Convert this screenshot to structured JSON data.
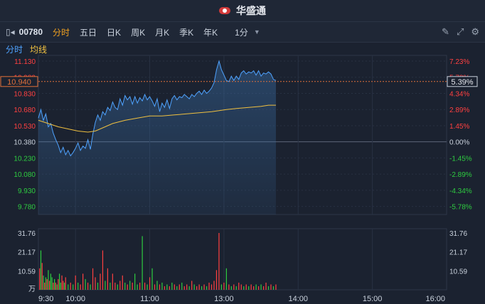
{
  "app": {
    "brand": "华盛通"
  },
  "toolbar": {
    "collapse_icon": "collapse-left-icon",
    "code": "00780",
    "tabs": [
      "分时",
      "五日",
      "日K",
      "周K",
      "月K",
      "季K",
      "年K"
    ],
    "active_tab": "分时",
    "interval": "1分",
    "icons": [
      "edit-icon",
      "expand-icon",
      "settings-icon"
    ]
  },
  "legend": {
    "line1": "分时",
    "line2": "均线"
  },
  "colors": {
    "price_line": "#4fa3ff",
    "avg_line": "#f0c040",
    "up": "#ff4040",
    "down": "#2ecc40",
    "neutral": "#c9d1dc"
  },
  "chart_data": {
    "type": "line",
    "price_axis": {
      "ticks": [
        "11.130",
        "10.980",
        "10.830",
        "10.680",
        "10.530",
        "10.380",
        "10.230",
        "10.080",
        "9.930",
        "9.780"
      ],
      "prev_close": "10.380",
      "min": 9.705,
      "max": 11.13
    },
    "pct_axis": {
      "ticks": [
        "7.23%",
        "5.78%",
        "4.34%",
        "2.89%",
        "1.45%",
        "0.00%",
        "-1.45%",
        "-2.89%",
        "-4.34%",
        "-5.78%"
      ]
    },
    "current": {
      "price_label": "10.940",
      "pct_label": "5.39%",
      "price": 10.94
    },
    "volume_axis": {
      "ticks": [
        "31.76",
        "21.17",
        "10.59"
      ],
      "unit": "万",
      "max": 31.76
    },
    "time_ticks": [
      "9:30",
      "10:00",
      "11:00",
      "13:00",
      "14:00",
      "15:00",
      "16:00"
    ],
    "price_series": [
      [
        0,
        10.6
      ],
      [
        2,
        10.68
      ],
      [
        4,
        10.58
      ],
      [
        6,
        10.64
      ],
      [
        8,
        10.52
      ],
      [
        10,
        10.55
      ],
      [
        12,
        10.46
      ],
      [
        14,
        10.4
      ],
      [
        16,
        10.35
      ],
      [
        18,
        10.28
      ],
      [
        20,
        10.33
      ],
      [
        22,
        10.26
      ],
      [
        24,
        10.3
      ],
      [
        26,
        10.25
      ],
      [
        28,
        10.28
      ],
      [
        30,
        10.32
      ],
      [
        32,
        10.37
      ],
      [
        34,
        10.3
      ],
      [
        36,
        10.34
      ],
      [
        38,
        10.32
      ],
      [
        40,
        10.4
      ],
      [
        42,
        10.31
      ],
      [
        44,
        10.45
      ],
      [
        46,
        10.56
      ],
      [
        48,
        10.63
      ],
      [
        50,
        10.58
      ],
      [
        52,
        10.66
      ],
      [
        54,
        10.63
      ],
      [
        56,
        10.7
      ],
      [
        58,
        10.67
      ],
      [
        60,
        10.75
      ],
      [
        62,
        10.7
      ],
      [
        64,
        10.68
      ],
      [
        66,
        10.78
      ],
      [
        68,
        10.72
      ],
      [
        70,
        10.81
      ],
      [
        72,
        10.77
      ],
      [
        74,
        10.8
      ],
      [
        76,
        10.73
      ],
      [
        78,
        10.8
      ],
      [
        80,
        10.74
      ],
      [
        82,
        10.79
      ],
      [
        84,
        10.76
      ],
      [
        86,
        10.82
      ],
      [
        88,
        10.77
      ],
      [
        90,
        10.8
      ],
      [
        92,
        10.76
      ],
      [
        94,
        10.71
      ],
      [
        96,
        10.78
      ],
      [
        98,
        10.66
      ],
      [
        100,
        10.74
      ],
      [
        102,
        10.7
      ],
      [
        104,
        10.77
      ],
      [
        106,
        10.69
      ],
      [
        108,
        10.78
      ],
      [
        110,
        10.81
      ],
      [
        112,
        10.77
      ],
      [
        114,
        10.8
      ],
      [
        116,
        10.79
      ],
      [
        118,
        10.82
      ],
      [
        120,
        10.8
      ],
      [
        122,
        10.78
      ],
      [
        124,
        10.82
      ],
      [
        126,
        10.8
      ],
      [
        128,
        10.83
      ],
      [
        130,
        10.85
      ],
      [
        132,
        10.82
      ],
      [
        134,
        10.86
      ],
      [
        136,
        10.83
      ],
      [
        138,
        10.85
      ],
      [
        140,
        10.88
      ],
      [
        142,
        10.93
      ],
      [
        144,
        11.05
      ],
      [
        146,
        11.13
      ],
      [
        148,
        11.05
      ],
      [
        150,
        11.0
      ],
      [
        152,
        10.95
      ],
      [
        154,
        10.94
      ],
      [
        156,
        10.99
      ],
      [
        158,
        10.95
      ],
      [
        160,
        10.99
      ],
      [
        162,
        10.96
      ],
      [
        164,
        11.02
      ],
      [
        166,
        11.04
      ],
      [
        168,
        11.01
      ],
      [
        170,
        11.03
      ],
      [
        172,
        11.02
      ],
      [
        174,
        11.04
      ],
      [
        176,
        11.0
      ],
      [
        178,
        11.04
      ],
      [
        180,
        10.99
      ],
      [
        182,
        11.02
      ],
      [
        184,
        11.01
      ],
      [
        186,
        11.03
      ],
      [
        188,
        11.01
      ],
      [
        190,
        10.96
      ],
      [
        192,
        10.95
      ]
    ],
    "avg_series": [
      [
        0,
        10.58
      ],
      [
        8,
        10.55
      ],
      [
        16,
        10.52
      ],
      [
        24,
        10.5
      ],
      [
        32,
        10.48
      ],
      [
        40,
        10.47
      ],
      [
        46,
        10.48
      ],
      [
        52,
        10.51
      ],
      [
        60,
        10.55
      ],
      [
        70,
        10.58
      ],
      [
        80,
        10.6
      ],
      [
        90,
        10.62
      ],
      [
        100,
        10.62
      ],
      [
        110,
        10.63
      ],
      [
        120,
        10.64
      ],
      [
        130,
        10.65
      ],
      [
        140,
        10.66
      ],
      [
        146,
        10.67
      ],
      [
        152,
        10.68
      ],
      [
        160,
        10.69
      ],
      [
        170,
        10.7
      ],
      [
        180,
        10.71
      ],
      [
        186,
        10.72
      ],
      [
        192,
        10.72
      ]
    ],
    "volume_series": [
      [
        1,
        12,
        "u"
      ],
      [
        2,
        22,
        "d"
      ],
      [
        3,
        15,
        "u"
      ],
      [
        4,
        8,
        "d"
      ],
      [
        5,
        4,
        "u"
      ],
      [
        6,
        7,
        "d"
      ],
      [
        7,
        6,
        "u"
      ],
      [
        8,
        11,
        "d"
      ],
      [
        9,
        5,
        "u"
      ],
      [
        10,
        9,
        "d"
      ],
      [
        11,
        7,
        "d"
      ],
      [
        12,
        4,
        "u"
      ],
      [
        13,
        6,
        "d"
      ],
      [
        14,
        4,
        "u"
      ],
      [
        15,
        3,
        "d"
      ],
      [
        16,
        6,
        "u"
      ],
      [
        17,
        9,
        "d"
      ],
      [
        18,
        4,
        "d"
      ],
      [
        19,
        8,
        "u"
      ],
      [
        20,
        5,
        "u"
      ],
      [
        21,
        4,
        "d"
      ],
      [
        22,
        7,
        "u"
      ],
      [
        24,
        3,
        "d"
      ],
      [
        26,
        4,
        "u"
      ],
      [
        28,
        3,
        "d"
      ],
      [
        30,
        8,
        "u"
      ],
      [
        32,
        4,
        "d"
      ],
      [
        34,
        3,
        "u"
      ],
      [
        36,
        9,
        "u"
      ],
      [
        38,
        6,
        "d"
      ],
      [
        40,
        4,
        "u"
      ],
      [
        42,
        3,
        "d"
      ],
      [
        44,
        12,
        "u"
      ],
      [
        46,
        7,
        "u"
      ],
      [
        48,
        4,
        "d"
      ],
      [
        50,
        9,
        "u"
      ],
      [
        52,
        22,
        "u"
      ],
      [
        54,
        5,
        "d"
      ],
      [
        56,
        12,
        "u"
      ],
      [
        58,
        4,
        "d"
      ],
      [
        60,
        9,
        "u"
      ],
      [
        62,
        4,
        "u"
      ],
      [
        64,
        3,
        "d"
      ],
      [
        66,
        5,
        "u"
      ],
      [
        68,
        8,
        "u"
      ],
      [
        70,
        4,
        "d"
      ],
      [
        72,
        3,
        "u"
      ],
      [
        74,
        5,
        "d"
      ],
      [
        76,
        4,
        "u"
      ],
      [
        78,
        9,
        "d"
      ],
      [
        80,
        3,
        "d"
      ],
      [
        82,
        4,
        "u"
      ],
      [
        84,
        30,
        "d"
      ],
      [
        86,
        4,
        "u"
      ],
      [
        88,
        3,
        "d"
      ],
      [
        90,
        7,
        "u"
      ],
      [
        92,
        12,
        "d"
      ],
      [
        94,
        3,
        "u"
      ],
      [
        96,
        5,
        "d"
      ],
      [
        98,
        3,
        "u"
      ],
      [
        100,
        4,
        "d"
      ],
      [
        102,
        2,
        "u"
      ],
      [
        104,
        3,
        "d"
      ],
      [
        106,
        2,
        "u"
      ],
      [
        108,
        4,
        "d"
      ],
      [
        110,
        3,
        "u"
      ],
      [
        112,
        2,
        "d"
      ],
      [
        114,
        3,
        "u"
      ],
      [
        116,
        4,
        "d"
      ],
      [
        118,
        2,
        "u"
      ],
      [
        120,
        3,
        "u"
      ],
      [
        122,
        2,
        "d"
      ],
      [
        124,
        5,
        "u"
      ],
      [
        126,
        3,
        "d"
      ],
      [
        128,
        2,
        "u"
      ],
      [
        130,
        3,
        "u"
      ],
      [
        132,
        2,
        "d"
      ],
      [
        134,
        3,
        "u"
      ],
      [
        136,
        2,
        "d"
      ],
      [
        138,
        4,
        "u"
      ],
      [
        140,
        3,
        "u"
      ],
      [
        142,
        5,
        "u"
      ],
      [
        144,
        11,
        "u"
      ],
      [
        146,
        31.76,
        "u"
      ],
      [
        148,
        3,
        "d"
      ],
      [
        150,
        4,
        "u"
      ],
      [
        152,
        12,
        "d"
      ],
      [
        154,
        3,
        "u"
      ],
      [
        156,
        2,
        "d"
      ],
      [
        158,
        3,
        "u"
      ],
      [
        160,
        2,
        "d"
      ],
      [
        162,
        4,
        "u"
      ],
      [
        164,
        3,
        "u"
      ],
      [
        166,
        2,
        "d"
      ],
      [
        168,
        3,
        "u"
      ],
      [
        170,
        2,
        "d"
      ],
      [
        172,
        3,
        "u"
      ],
      [
        174,
        2,
        "u"
      ],
      [
        176,
        3,
        "d"
      ],
      [
        178,
        2,
        "u"
      ],
      [
        180,
        3,
        "d"
      ],
      [
        182,
        2,
        "u"
      ],
      [
        184,
        4,
        "u"
      ],
      [
        186,
        2,
        "d"
      ],
      [
        188,
        3,
        "u"
      ],
      [
        190,
        2,
        "d"
      ],
      [
        192,
        3,
        "u"
      ]
    ]
  }
}
